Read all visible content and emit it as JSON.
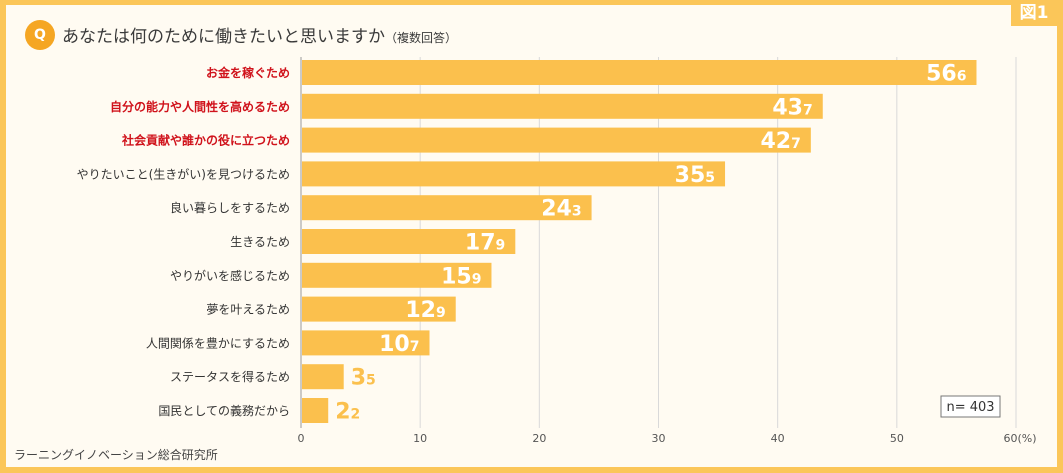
{
  "figure_label": "図1",
  "question": {
    "badge": "Q",
    "title": "あなたは何のために働きたいと思いますか",
    "subtitle": "（複数回答）"
  },
  "source": "ラーニングイノベーション総合研究所",
  "sample_size": "n= 403",
  "colors": {
    "bar": "#fbc04d",
    "highlight_label": "#d0121b",
    "normal_label": "#333333",
    "frame": "#fbc659",
    "outside_value": "#fbc04d"
  },
  "chart_data": {
    "type": "bar",
    "orientation": "horizontal",
    "title": "あなたは何のために働きたいと思いますか（複数回答）",
    "xlabel": "(%)",
    "ylabel": "",
    "xlim": [
      0,
      60
    ],
    "xticks": [
      "0",
      "10",
      "20",
      "30",
      "40",
      "50",
      "60(%)"
    ],
    "grid": true,
    "categories": [
      "お金を稼ぐため",
      "自分の能力や人間性を高めるため",
      "社会貢献や誰かの役に立つため",
      "やりたいこと(生きがい)を見つけるため",
      "良い暮らしをするため",
      "生きるため",
      "やりがいを感じるため",
      "夢を叶えるため",
      "人間関係を豊かにするため",
      "ステータスを得るため",
      "国民としての義務だから"
    ],
    "values": [
      56.6,
      43.7,
      42.7,
      35.5,
      24.3,
      17.9,
      15.9,
      12.9,
      10.7,
      3.5,
      2.2
    ],
    "highlighted": [
      true,
      true,
      true,
      false,
      false,
      false,
      false,
      false,
      false,
      false,
      false
    ]
  }
}
